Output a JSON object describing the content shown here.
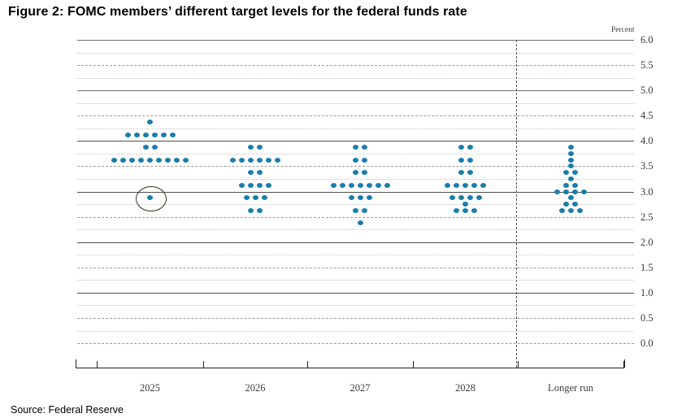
{
  "title": "Figure 2: FOMC members’ different target levels for the federal funds rate",
  "source": "Source: Federal Reserve",
  "chart_data": {
    "type": "scatter",
    "subtype": "fomc-dot-plot",
    "title": "Figure 2: FOMC members’ different target levels for the federal funds rate",
    "unit_label": "Percent",
    "xlabel": "",
    "ylabel": "Percent",
    "ylim": [
      0.0,
      6.0
    ],
    "ytick_step": 0.5,
    "grid_step": 0.25,
    "grid": "on",
    "yticks": [
      "6.0",
      "5.5",
      "5.0",
      "4.5",
      "4.0",
      "3.5",
      "3.0",
      "2.5",
      "2.0",
      "1.5",
      "1.0",
      "0.5",
      "0.0"
    ],
    "categories": [
      "2025",
      "2026",
      "2027",
      "2028",
      "Longer run"
    ],
    "separator_before_category": "Longer run",
    "dot_color": "#1a7dab",
    "series": [
      {
        "name": "2025",
        "dots": [
          {
            "v": 4.375,
            "n": 1
          },
          {
            "v": 4.125,
            "n": 6
          },
          {
            "v": 3.875,
            "n": 2
          },
          {
            "v": 3.625,
            "n": 9
          },
          {
            "v": 2.875,
            "n": 1
          }
        ]
      },
      {
        "name": "2026",
        "dots": [
          {
            "v": 3.875,
            "n": 2
          },
          {
            "v": 3.625,
            "n": 6
          },
          {
            "v": 3.375,
            "n": 2
          },
          {
            "v": 3.125,
            "n": 4
          },
          {
            "v": 2.875,
            "n": 3
          },
          {
            "v": 2.625,
            "n": 2
          }
        ]
      },
      {
        "name": "2027",
        "dots": [
          {
            "v": 3.875,
            "n": 2
          },
          {
            "v": 3.625,
            "n": 2
          },
          {
            "v": 3.375,
            "n": 2
          },
          {
            "v": 3.125,
            "n": 7
          },
          {
            "v": 2.875,
            "n": 3
          },
          {
            "v": 2.625,
            "n": 2
          },
          {
            "v": 2.375,
            "n": 1
          }
        ]
      },
      {
        "name": "2028",
        "dots": [
          {
            "v": 3.875,
            "n": 2
          },
          {
            "v": 3.625,
            "n": 2
          },
          {
            "v": 3.375,
            "n": 2
          },
          {
            "v": 3.125,
            "n": 5
          },
          {
            "v": 2.875,
            "n": 4
          },
          {
            "v": 2.75,
            "n": 1
          },
          {
            "v": 2.625,
            "n": 3
          }
        ]
      },
      {
        "name": "Longer run",
        "dots": [
          {
            "v": 3.875,
            "n": 1
          },
          {
            "v": 3.75,
            "n": 1
          },
          {
            "v": 3.625,
            "n": 1
          },
          {
            "v": 3.5,
            "n": 1
          },
          {
            "v": 3.375,
            "n": 2
          },
          {
            "v": 3.25,
            "n": 1
          },
          {
            "v": 3.125,
            "n": 2
          },
          {
            "v": 3.0,
            "n": 4
          },
          {
            "v": 2.875,
            "n": 1
          },
          {
            "v": 2.75,
            "n": 2
          },
          {
            "v": 2.625,
            "n": 3
          }
        ]
      }
    ],
    "annotation": {
      "type": "circle",
      "series": "2025",
      "value": 2.875,
      "color": "#33301a",
      "meaning": "circled single low dot in 2025 column"
    }
  }
}
